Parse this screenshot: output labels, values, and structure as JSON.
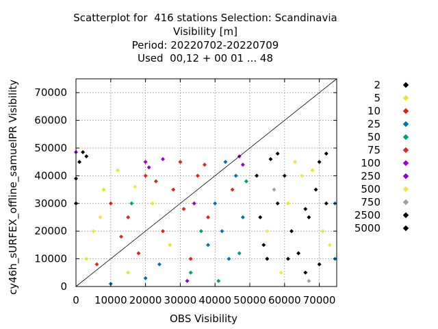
{
  "title_lines": [
    "Scatterplot for  416 stations Selection: Scandinavia",
    "Visibility [m]",
    "Period: 20220702-20220709",
    "Used  00,12 + 00 01 ... 48"
  ],
  "chart_data": {
    "type": "scatter",
    "xlabel": "OBS Visibility",
    "ylabel": "cy46h_sURFEX_offline_samuelPR Visibility",
    "xlim": [
      0,
      75000
    ],
    "ylim": [
      0,
      75000
    ],
    "xticks": [
      "0",
      "10000",
      "20000",
      "30000",
      "40000",
      "50000",
      "60000",
      "70000"
    ],
    "yticks": [
      "0",
      "10000",
      "20000",
      "30000",
      "40000",
      "50000",
      "60000",
      "70000"
    ],
    "grid": true,
    "legend_position": "right",
    "diagonal_line": true,
    "series": [
      {
        "name": "2",
        "color": "#000000",
        "points": [
          [
            60000,
            40000
          ],
          [
            67000,
            25000
          ],
          [
            72000,
            48000
          ],
          [
            55000,
            10000
          ],
          [
            64000,
            12000
          ],
          [
            58000,
            30000
          ],
          [
            69000,
            35000
          ],
          [
            2000,
            48500
          ],
          [
            1000,
            45000
          ],
          [
            3000,
            47000
          ],
          [
            62000,
            20000
          ],
          [
            70000,
            8000
          ],
          [
            56000,
            46000
          ],
          [
            66000,
            5000
          ]
        ]
      },
      {
        "name": "5",
        "color": "#e6e632",
        "points": [
          [
            5000,
            20000
          ],
          [
            8000,
            35000
          ],
          [
            12000,
            42000
          ],
          [
            3000,
            10000
          ],
          [
            61000,
            30000
          ],
          [
            68000,
            42000
          ],
          [
            71000,
            20000
          ],
          [
            15000,
            5000
          ],
          [
            22000,
            30000
          ],
          [
            27000,
            15000
          ]
        ]
      },
      {
        "name": "10",
        "color": "#e4201b",
        "points": [
          [
            10000,
            30000
          ],
          [
            15000,
            25000
          ],
          [
            20000,
            40000
          ],
          [
            25000,
            20000
          ],
          [
            30000,
            45000
          ],
          [
            33000,
            10000
          ],
          [
            28000,
            35000
          ],
          [
            38000,
            25000
          ],
          [
            45000,
            35000
          ],
          [
            18000,
            12000
          ],
          [
            35000,
            40000
          ]
        ]
      },
      {
        "name": "25",
        "color": "#0072b2",
        "points": [
          [
            40000,
            30000
          ],
          [
            42000,
            20000
          ],
          [
            44000,
            10000
          ],
          [
            46000,
            40000
          ],
          [
            48000,
            25000
          ],
          [
            38000,
            15000
          ],
          [
            24000,
            8000
          ],
          [
            20000,
            3000
          ],
          [
            10000,
            1000
          ],
          [
            43000,
            45000
          ],
          [
            74500,
            30000
          ],
          [
            74500,
            10000
          ]
        ]
      },
      {
        "name": "50",
        "color": "#009e73",
        "points": [
          [
            36000,
            20000
          ],
          [
            47000,
            12000
          ],
          [
            16000,
            30000
          ],
          [
            33000,
            5000
          ],
          [
            49000,
            38000
          ],
          [
            41000,
            2000
          ]
        ]
      },
      {
        "name": "75",
        "color": "#d52b1e",
        "points": [
          [
            23000,
            38000
          ],
          [
            31000,
            28000
          ],
          [
            13000,
            18000
          ],
          [
            6000,
            8000
          ],
          [
            37000,
            44000
          ]
        ]
      },
      {
        "name": "100",
        "color": "#9400d3",
        "points": [
          [
            20000,
            45000
          ],
          [
            48000,
            44000
          ],
          [
            34000,
            30000
          ],
          [
            25000,
            46000
          ],
          [
            0,
            48500
          ]
        ]
      },
      {
        "name": "250",
        "color": "#8a00c8",
        "points": [
          [
            21000,
            43000
          ],
          [
            47000,
            47000
          ],
          [
            32000,
            2000
          ]
        ]
      },
      {
        "name": "500",
        "color": "#f2e44a",
        "points": [
          [
            55000,
            20000
          ],
          [
            65000,
            40000
          ],
          [
            59000,
            5000
          ],
          [
            73000,
            15000
          ],
          [
            63000,
            45000
          ],
          [
            7000,
            25000
          ],
          [
            17000,
            36000
          ]
        ]
      },
      {
        "name": "750",
        "color": "#a0a0a0",
        "points": [
          [
            57000,
            35000
          ],
          [
            67000,
            2000
          ]
        ]
      },
      {
        "name": "2500",
        "color": "#000000",
        "points": [
          [
            53000,
            25000
          ],
          [
            61000,
            10000
          ],
          [
            72000,
            30000
          ],
          [
            58000,
            48000
          ],
          [
            0,
            39000
          ]
        ]
      },
      {
        "name": "5000",
        "color": "#000000",
        "points": [
          [
            54000,
            15000
          ],
          [
            66000,
            28000
          ],
          [
            70000,
            45000
          ],
          [
            52000,
            40000
          ],
          [
            0,
            30000
          ]
        ]
      }
    ]
  }
}
